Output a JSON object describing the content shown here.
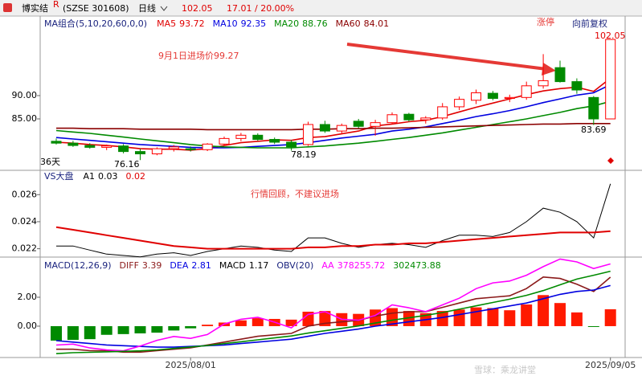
{
  "header": {
    "name": "博实结",
    "mark": "R",
    "code": "(SZSE 301608)",
    "period": "日线",
    "change": "17.01 / 20.00%",
    "adjust": "向前复权"
  },
  "watermark": "雪球：乘龙讲堂",
  "chart_data": [
    {
      "type": "candlestick",
      "title": "MA组合(5,10,20,60,0,0)",
      "open": [
        80.2,
        79.8,
        79.3,
        78.9,
        79.2,
        78.0,
        77.5,
        78.6,
        78.6,
        78.4,
        79.6,
        80.8,
        81.5,
        80.6,
        80.0,
        79.5,
        83.8,
        82.4,
        84.5,
        83.4,
        84.2,
        86.0,
        84.8,
        85.2,
        87.6,
        89.0,
        90.5,
        89.4,
        89.6,
        92.1,
        96.0,
        93.0,
        89.6,
        85.0
      ],
      "high": [
        80.8,
        80.3,
        79.8,
        79.5,
        79.6,
        78.6,
        78.9,
        79.4,
        79.1,
        79.8,
        81.2,
        82.0,
        81.9,
        81.0,
        80.5,
        84.4,
        84.6,
        84.0,
        85.0,
        84.8,
        86.4,
        86.3,
        85.6,
        88.4,
        89.8,
        91.3,
        91.0,
        90.2,
        93.0,
        98.9,
        97.5,
        93.7,
        89.9,
        102.05
      ],
      "low": [
        79.5,
        79.0,
        78.6,
        78.3,
        77.6,
        76.16,
        77.2,
        78.0,
        78.0,
        78.1,
        79.3,
        80.2,
        80.3,
        79.6,
        78.19,
        79.2,
        82.0,
        81.8,
        83.0,
        81.4,
        83.8,
        84.4,
        84.0,
        84.8,
        86.9,
        88.2,
        89.0,
        88.6,
        89.1,
        91.5,
        92.8,
        90.4,
        83.69,
        85.0
      ],
      "close": [
        79.8,
        79.3,
        78.9,
        79.2,
        78.0,
        77.5,
        78.6,
        79.0,
        78.4,
        79.6,
        80.8,
        81.5,
        80.6,
        80.0,
        79.0,
        83.8,
        82.4,
        83.6,
        83.4,
        84.2,
        85.9,
        84.8,
        85.2,
        87.6,
        89.2,
        90.6,
        89.4,
        89.6,
        92.1,
        93.2,
        93.0,
        91.2,
        85.0,
        102.05
      ],
      "up_color": "#ff0000",
      "down_color": "#008a00",
      "ylim": [
        73.97,
        106.72
      ],
      "yticks": [
        {
          "value": 90,
          "label": "90.00"
        },
        {
          "value": 85,
          "label": "85.00"
        }
      ],
      "series": [
        {
          "name": "MA5",
          "color": "#e00000",
          "legend_value": 93.72,
          "values": [
            80.0,
            79.8,
            79.5,
            79.3,
            79.0,
            78.6,
            78.5,
            78.5,
            78.3,
            78.6,
            79.3,
            79.9,
            80.2,
            80.5,
            80.4,
            81.0,
            81.2,
            81.8,
            82.4,
            83.5,
            83.9,
            84.4,
            84.7,
            85.5,
            86.5,
            87.5,
            88.4,
            89.3,
            90.2,
            91.0,
            91.5,
            91.8,
            90.9,
            93.72
          ]
        },
        {
          "name": "MA10",
          "color": "#0000e0",
          "legend_value": 92.35,
          "values": [
            81.0,
            80.7,
            80.4,
            80.1,
            79.8,
            79.5,
            79.3,
            79.1,
            78.9,
            78.8,
            78.8,
            78.9,
            79.1,
            79.3,
            79.5,
            79.9,
            80.4,
            80.9,
            81.3,
            81.7,
            82.4,
            82.8,
            83.3,
            84.0,
            84.7,
            85.5,
            86.1,
            86.8,
            87.6,
            88.5,
            89.3,
            90.1,
            90.6,
            92.35
          ]
        },
        {
          "name": "MA20",
          "color": "#008a00",
          "legend_value": 88.76,
          "values": [
            82.5,
            82.2,
            81.9,
            81.5,
            81.1,
            80.7,
            80.3,
            79.9,
            79.5,
            79.2,
            79.0,
            78.9,
            78.8,
            78.8,
            78.8,
            79.0,
            79.2,
            79.5,
            79.8,
            80.2,
            80.6,
            81.0,
            81.5,
            82.0,
            82.6,
            83.2,
            83.8,
            84.4,
            85.0,
            85.7,
            86.4,
            87.2,
            87.8,
            88.76
          ]
        },
        {
          "name": "MA60",
          "color": "#8b0000",
          "legend_value": 84.01,
          "values": [
            83.0,
            83.0,
            82.9,
            82.9,
            82.9,
            82.8,
            82.8,
            82.8,
            82.8,
            82.7,
            82.7,
            82.7,
            82.7,
            82.7,
            82.7,
            82.8,
            82.8,
            82.9,
            82.9,
            83.0,
            83.0,
            83.1,
            83.2,
            83.3,
            83.4,
            83.5,
            83.6,
            83.7,
            83.8,
            83.9,
            83.9,
            84.0,
            84.0,
            84.01
          ]
        }
      ],
      "annotations": [
        {
          "text": "9月1日进场价99.27"
        },
        {
          "text": "涨停"
        },
        {
          "text": "36天"
        }
      ]
    },
    {
      "type": "line",
      "title": "VS大盘",
      "ylim": [
        0.0215,
        0.0278
      ],
      "yticks": [
        0.026,
        0.024,
        0.022
      ],
      "series": [
        {
          "name": "A1",
          "color": "#000000",
          "legend_value": 0.03,
          "values": [
            0.0222,
            0.0222,
            0.0219,
            0.0216,
            0.0215,
            0.0214,
            0.0216,
            0.0217,
            0.0215,
            0.0218,
            0.022,
            0.0222,
            0.0221,
            0.0219,
            0.0218,
            0.0228,
            0.0228,
            0.0224,
            0.0221,
            0.0223,
            0.0224,
            0.0223,
            0.0221,
            0.0226,
            0.023,
            0.023,
            0.0229,
            0.0232,
            0.024,
            0.025,
            0.0247,
            0.024,
            0.0228,
            0.0268
          ]
        },
        {
          "color": "#e00000",
          "legend_value": 0.02,
          "values": [
            0.0236,
            0.0234,
            0.0232,
            0.023,
            0.0228,
            0.0226,
            0.0224,
            0.0222,
            0.0221,
            0.022,
            0.022,
            0.022,
            0.022,
            0.022,
            0.022,
            0.0221,
            0.0221,
            0.0222,
            0.0222,
            0.0223,
            0.0223,
            0.0224,
            0.0224,
            0.0225,
            0.0226,
            0.0227,
            0.0228,
            0.0229,
            0.023,
            0.0231,
            0.0232,
            0.0232,
            0.0232,
            0.0233
          ]
        }
      ],
      "annotations": [
        {
          "text": "行情回顾，不建议进场"
        }
      ]
    },
    {
      "type": "macd",
      "title": "MACD(12,26,9)",
      "subtitle": "OBV(20)",
      "categories": [
        null,
        null,
        null,
        null,
        null,
        null,
        null,
        null,
        "2025/08/01",
        null,
        null,
        null,
        null,
        null,
        null,
        null,
        null,
        null,
        null,
        null,
        null,
        null,
        null,
        null,
        null,
        null,
        null,
        null,
        null,
        null,
        null,
        null,
        null,
        "2025/09/05"
      ],
      "ylim": [
        -2.17,
        4.78
      ],
      "yticks": [
        {
          "value": 2,
          "label": "2.00"
        },
        {
          "value": 0,
          "label": "0.00"
        }
      ],
      "y2lim": [
        -600000,
        450000
      ],
      "up_color": "#ff1a00",
      "down_color": "#008a00",
      "bars": {
        "name": "MACD",
        "color": "#000000",
        "legend_value": 1.17,
        "values": [
          -1.0,
          -0.95,
          -0.9,
          -0.6,
          -0.55,
          -0.5,
          -0.45,
          -0.3,
          -0.15,
          0.1,
          0.25,
          0.4,
          0.55,
          0.5,
          0.45,
          1.0,
          1.05,
          0.9,
          0.85,
          1.15,
          1.25,
          1.05,
          0.9,
          1.05,
          1.15,
          1.3,
          1.25,
          1.1,
          1.5,
          2.15,
          1.6,
          0.95,
          -0.05,
          1.17
        ]
      },
      "series": [
        {
          "name": "DIFF",
          "color": "#8b1a1a",
          "legend_value": 3.39,
          "values": [
            -1.6,
            -1.6,
            -1.7,
            -1.7,
            -1.8,
            -1.8,
            -1.7,
            -1.6,
            -1.5,
            -1.3,
            -1.1,
            -0.9,
            -0.7,
            -0.6,
            -0.5,
            0.0,
            0.2,
            0.3,
            0.4,
            0.7,
            0.9,
            1.0,
            1.0,
            1.3,
            1.6,
            1.9,
            2.0,
            2.1,
            2.6,
            3.4,
            3.3,
            2.9,
            2.4,
            3.39
          ]
        },
        {
          "name": "DEA",
          "color": "#0000e0",
          "legend_value": 2.81,
          "values": [
            -1.0,
            -1.1,
            -1.2,
            -1.3,
            -1.35,
            -1.4,
            -1.45,
            -1.45,
            -1.4,
            -1.35,
            -1.3,
            -1.2,
            -1.1,
            -1.0,
            -0.9,
            -0.7,
            -0.5,
            -0.35,
            -0.2,
            0.0,
            0.15,
            0.3,
            0.45,
            0.6,
            0.8,
            1.0,
            1.2,
            1.4,
            1.6,
            1.9,
            2.2,
            2.4,
            2.5,
            2.81
          ]
        },
        {
          "name": "AA",
          "color": "#ff00ff",
          "axis": "y2",
          "legend_value": 378255.72,
          "values": [
            -470000,
            -460000,
            -500000,
            -520000,
            -530000,
            -480000,
            -420000,
            -380000,
            -400000,
            -360000,
            -250000,
            -200000,
            -180000,
            -230000,
            -290000,
            -150000,
            -120000,
            -200000,
            -210000,
            -160000,
            -50000,
            -80000,
            -120000,
            -50000,
            20000,
            120000,
            180000,
            200000,
            260000,
            350000,
            430000,
            400000,
            330000,
            378255.72
          ]
        },
        {
          "color": "#008a00",
          "axis": "y2",
          "legend_value": 302473.88,
          "values": [
            -560000,
            -550000,
            -545000,
            -540000,
            -535000,
            -530000,
            -520000,
            -505000,
            -490000,
            -475000,
            -455000,
            -435000,
            -415000,
            -395000,
            -375000,
            -345000,
            -320000,
            -295000,
            -270000,
            -240000,
            -210000,
            -185000,
            -160000,
            -130000,
            -95000,
            -60000,
            -25000,
            10000,
            50000,
            100000,
            160000,
            220000,
            260000,
            302473.88
          ]
        }
      ]
    }
  ]
}
